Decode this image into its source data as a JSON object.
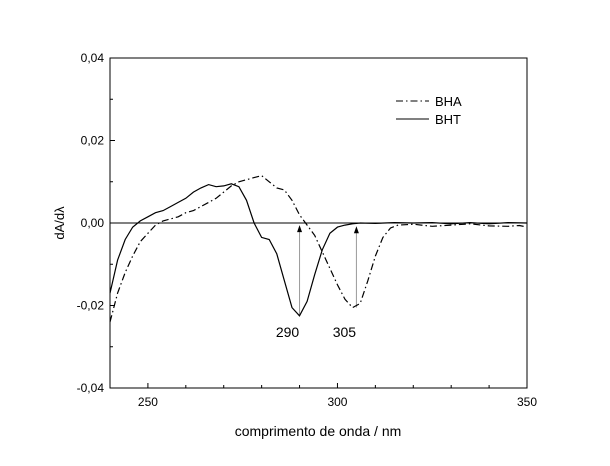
{
  "chart_data": {
    "type": "line",
    "title": "",
    "xlabel": "comprimento de onda / nm",
    "ylabel": "dA/dλ",
    "xlim": [
      240,
      350
    ],
    "ylim": [
      -0.04,
      0.04
    ],
    "xticks": [
      250,
      300,
      350
    ],
    "xtick_labels": [
      "250",
      "300",
      "350"
    ],
    "yticks": [
      0.04,
      0.02,
      0.0,
      -0.02,
      -0.04
    ],
    "ytick_labels": [
      "0,04",
      "0,02",
      "0,00",
      "-0,02",
      "-0,04"
    ],
    "grid": false,
    "legend_position": "top-right",
    "zero_line": true,
    "series": [
      {
        "name": "BHA",
        "style": "dash-dot",
        "color": "#000000",
        "x": [
          240,
          242,
          244,
          246,
          248,
          250,
          252,
          254,
          256,
          258,
          260,
          262,
          264,
          266,
          268,
          270,
          272,
          274,
          276,
          278,
          280,
          282,
          284,
          286,
          288,
          290,
          292,
          294,
          296,
          298,
          300,
          302,
          304,
          306,
          308,
          310,
          312,
          314,
          316,
          318,
          320,
          325,
          330,
          335,
          340,
          345,
          348,
          350
        ],
        "y": [
          -0.024,
          -0.017,
          -0.012,
          -0.008,
          -0.0045,
          -0.0025,
          -0.0005,
          0.0005,
          0.001,
          0.0015,
          0.0025,
          0.003,
          0.004,
          0.005,
          0.006,
          0.0075,
          0.009,
          0.01,
          0.0105,
          0.011,
          0.0115,
          0.01,
          0.0085,
          0.008,
          0.0055,
          0.002,
          -0.0005,
          -0.003,
          -0.007,
          -0.011,
          -0.015,
          -0.0185,
          -0.0205,
          -0.0195,
          -0.014,
          -0.008,
          -0.0035,
          -0.0012,
          -0.0005,
          -0.0004,
          -0.0003,
          -0.0008,
          -0.0005,
          -0.0002,
          -0.0007,
          -0.0008,
          -0.0006,
          -0.001
        ]
      },
      {
        "name": "BHT",
        "style": "solid",
        "color": "#000000",
        "x": [
          240,
          242,
          244,
          246,
          248,
          250,
          252,
          254,
          256,
          258,
          260,
          262,
          264,
          266,
          268,
          270,
          272,
          274,
          276,
          278,
          280,
          282,
          284,
          286,
          288,
          290,
          292,
          294,
          296,
          298,
          300,
          302,
          304,
          306,
          310,
          315,
          320,
          325,
          330,
          335,
          340,
          345,
          350
        ],
        "y": [
          -0.017,
          -0.009,
          -0.004,
          -0.001,
          0.0005,
          0.0015,
          0.0025,
          0.003,
          0.004,
          0.005,
          0.006,
          0.0075,
          0.0085,
          0.0093,
          0.0088,
          0.009,
          0.0095,
          0.0088,
          0.0055,
          0.0,
          -0.0035,
          -0.004,
          -0.0075,
          -0.014,
          -0.0205,
          -0.0225,
          -0.019,
          -0.0125,
          -0.0065,
          -0.0025,
          -0.001,
          -0.0005,
          -0.0002,
          0.0,
          -0.0001,
          0.0001,
          0.0,
          0.0001,
          -0.0002,
          0.0001,
          -0.0002,
          0.0001,
          0.0
        ]
      }
    ],
    "annotations": [
      {
        "text": "290",
        "x": 290,
        "y_from": -0.0225,
        "y_to": -0.0005
      },
      {
        "text": "305",
        "x": 305,
        "y_from": -0.0205,
        "y_to": -0.0008
      }
    ]
  }
}
